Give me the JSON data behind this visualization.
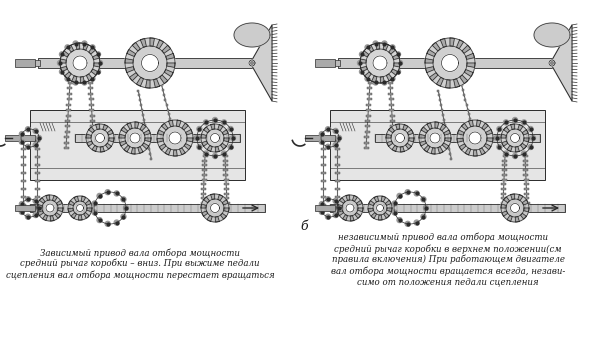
{
  "background_color": "#ffffff",
  "figsize": [
    6.0,
    3.63
  ],
  "dpi": 100,
  "left_caption_line1": "Зависимый привод вала отбора мощности",
  "left_caption_line2": "средний рычаг коробки – вниз. При выжиме педали",
  "left_caption_line3": "сцепления вал отбора мощности перестает вращаться",
  "right_caption_pre": "б",
  "right_caption_line1": "независимый привод вала отбора мощности",
  "right_caption_line2": "средний рычаг коробки в верхнем положении(см",
  "right_caption_line3": "правила включения) При работающем двигателе",
  "right_caption_line4": "вал отбора мощности вращается всегда, незави-",
  "right_caption_line5": "симо от положения педали сцепления",
  "label_b": "б",
  "text_color": "#1a1a1a",
  "font_size_caption": 6.2,
  "line_color": "#2a2a2a",
  "gear_fill": "#e8e8e8",
  "shaft_fill": "#cccccc",
  "bg_white": "#ffffff"
}
